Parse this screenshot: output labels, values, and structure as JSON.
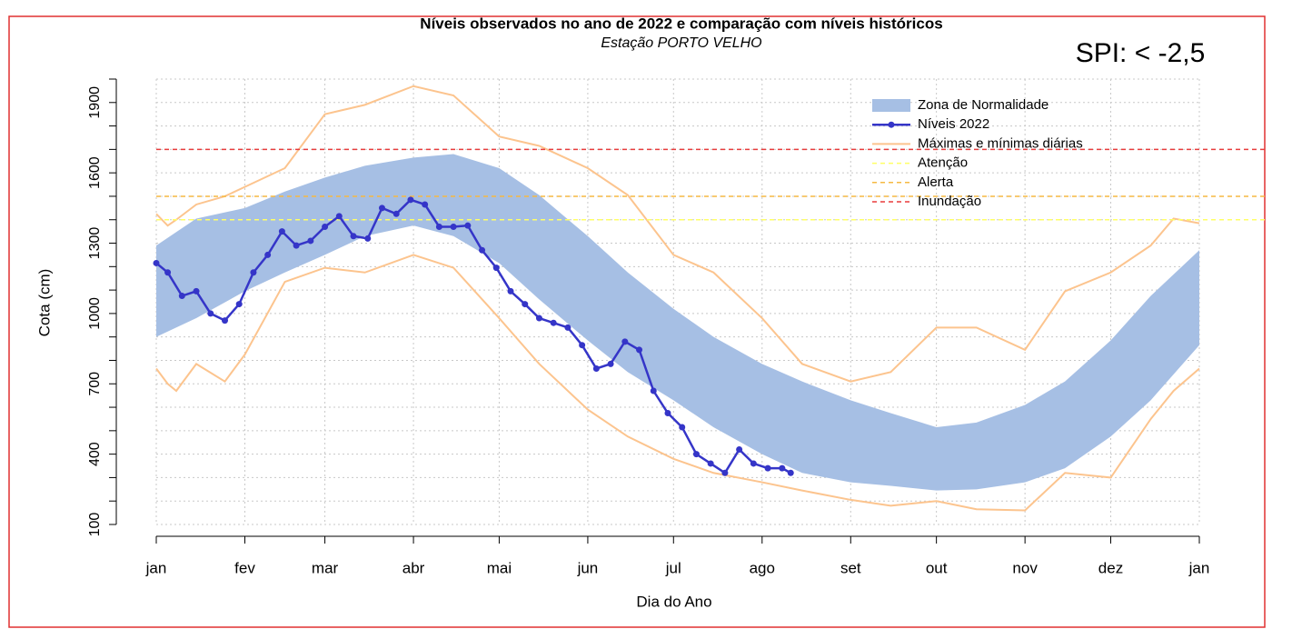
{
  "chart_data": {
    "type": "line",
    "title": "Níveis observados no ano de 2022 e comparação com níveis históricos",
    "subtitle": "Estação PORTO VELHO",
    "annotation": "SPI: < -2,5",
    "x_label": "Dia do Ano",
    "y_label": "Cota (cm)",
    "xlim": [
      1,
      366
    ],
    "ylim": [
      100,
      2000
    ],
    "xticks": [
      {
        "value": 1,
        "label": "jan"
      },
      {
        "value": 32,
        "label": "fev"
      },
      {
        "value": 60,
        "label": "mar"
      },
      {
        "value": 91,
        "label": "abr"
      },
      {
        "value": 121,
        "label": "mai"
      },
      {
        "value": 152,
        "label": "jun"
      },
      {
        "value": 182,
        "label": "jul"
      },
      {
        "value": 213,
        "label": "ago"
      },
      {
        "value": 244,
        "label": "set"
      },
      {
        "value": 274,
        "label": "out"
      },
      {
        "value": 305,
        "label": "nov"
      },
      {
        "value": 335,
        "label": "dez"
      },
      {
        "value": 366,
        "label": "jan"
      }
    ],
    "yticks": [
      100,
      400,
      700,
      1000,
      1300,
      1600,
      1900
    ],
    "y_minor_ticks": [
      200,
      300,
      500,
      600,
      800,
      900,
      1100,
      1200,
      1400,
      1500,
      1700,
      1800,
      2000
    ],
    "grid": true,
    "legend": "top-right",
    "band": {
      "name": "Zona de Normalidade",
      "color": "#a6bfe4",
      "x": [
        1,
        15,
        32,
        46,
        60,
        74,
        91,
        105,
        121,
        135,
        152,
        166,
        182,
        196,
        213,
        227,
        244,
        258,
        274,
        288,
        305,
        319,
        335,
        349,
        366
      ],
      "upper": [
        1290,
        1405,
        1450,
        1520,
        1580,
        1630,
        1665,
        1680,
        1620,
        1505,
        1330,
        1175,
        1020,
        900,
        785,
        710,
        630,
        575,
        515,
        535,
        610,
        710,
        885,
        1075,
        1270
      ],
      "lower": [
        900,
        980,
        1095,
        1175,
        1250,
        1330,
        1375,
        1330,
        1215,
        1060,
        885,
        750,
        630,
        515,
        400,
        320,
        280,
        265,
        245,
        250,
        280,
        340,
        475,
        630,
        865
      ]
    },
    "series": [
      {
        "name": "Níveis 2022",
        "color": "#3535c8",
        "x": [
          1,
          5,
          10,
          15,
          20,
          25,
          30,
          35,
          40,
          45,
          50,
          55,
          60,
          65,
          70,
          75,
          80,
          85,
          90,
          95,
          100,
          105,
          110,
          115,
          120,
          125,
          130,
          135,
          140,
          145,
          150,
          155,
          160,
          165,
          170,
          175,
          180,
          185,
          190,
          195,
          200,
          205,
          210,
          215,
          220,
          223
        ],
        "values": [
          1215,
          1175,
          1075,
          1095,
          1000,
          970,
          1040,
          1175,
          1250,
          1350,
          1290,
          1310,
          1370,
          1415,
          1330,
          1320,
          1450,
          1425,
          1485,
          1465,
          1370,
          1370,
          1375,
          1270,
          1195,
          1095,
          1040,
          980,
          960,
          940,
          865,
          765,
          785,
          880,
          845,
          670,
          575,
          515,
          400,
          360,
          320,
          420,
          360,
          340,
          340,
          320
        ]
      }
    ],
    "extremes": {
      "name": "Máximas e mínimas diárias",
      "color": "#fcc48e",
      "x": [
        1,
        5,
        8,
        15,
        25,
        32,
        46,
        60,
        74,
        91,
        105,
        121,
        135,
        152,
        166,
        182,
        196,
        213,
        227,
        244,
        258,
        274,
        288,
        305,
        319,
        335,
        349,
        357,
        366
      ],
      "max": [
        1425,
        1375,
        1400,
        1465,
        1500,
        1540,
        1620,
        1850,
        1890,
        1970,
        1930,
        1755,
        1715,
        1620,
        1505,
        1250,
        1175,
        980,
        785,
        710,
        750,
        940,
        940,
        845,
        1095,
        1175,
        1290,
        1405,
        1385
      ],
      "min": [
        765,
        700,
        670,
        785,
        710,
        825,
        1135,
        1195,
        1175,
        1250,
        1195,
        980,
        785,
        590,
        475,
        380,
        320,
        280,
        245,
        205,
        180,
        200,
        165,
        160,
        320,
        300,
        550,
        670,
        765
      ]
    },
    "reference_lines": [
      {
        "name": "Atenção",
        "value": 1400,
        "color": "#ffff66"
      },
      {
        "name": "Alerta",
        "value": 1500,
        "color": "#f5b942"
      },
      {
        "name": "Inundação",
        "value": 1700,
        "color": "#e83c3c"
      }
    ]
  }
}
